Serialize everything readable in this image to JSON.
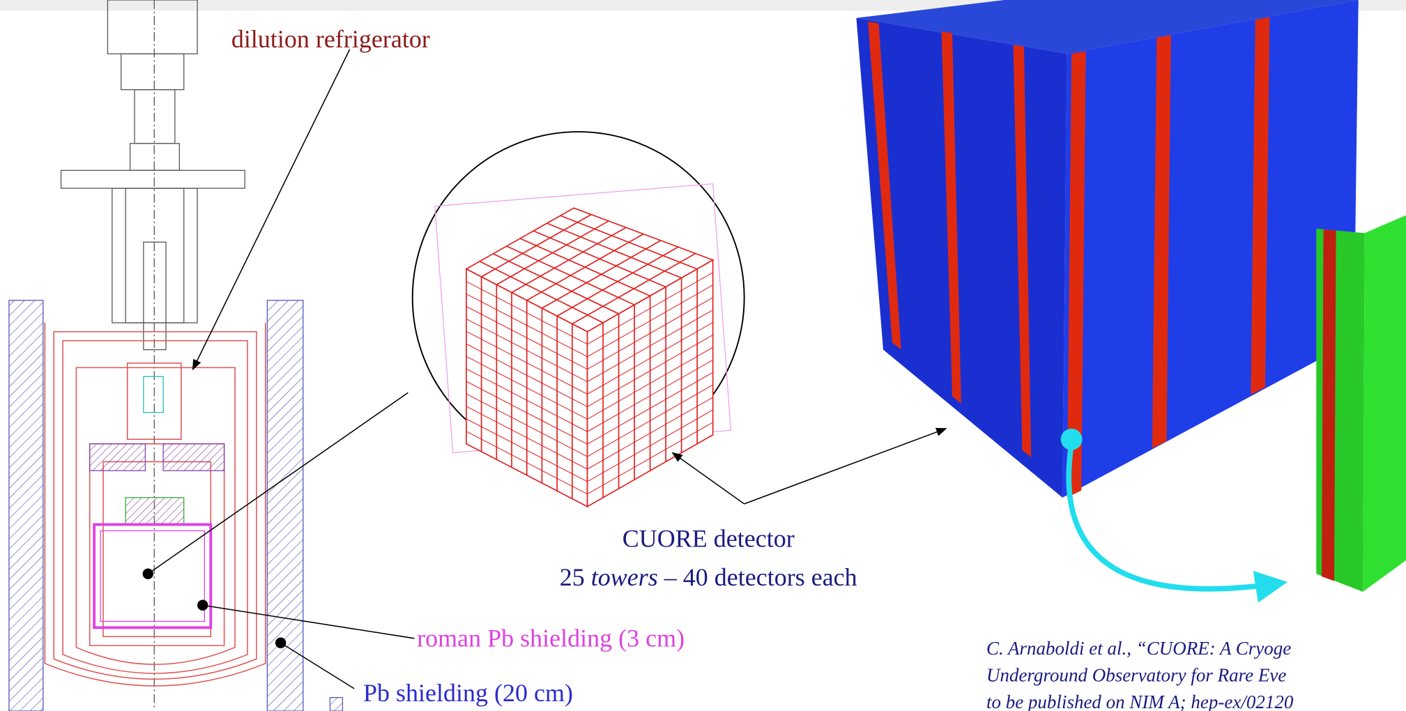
{
  "labels": {
    "dilution_refrigerator": "dilution refrigerator",
    "cuore_detector": {
      "line1": "CUORE detector",
      "line2_number": "25",
      "line2_italic": "towers",
      "line2_rest": "– 40 detectors each"
    },
    "roman_shielding": "roman Pb shielding (3 cm)",
    "pb_shielding": "Pb shielding (20 cm)",
    "citation": [
      "C. Arnaboldi et al., “CUORE: A Cryoge",
      "Underground Observatory for Rare Eve",
      "to be published on NIM A; hep-ex/02120"
    ]
  }
}
